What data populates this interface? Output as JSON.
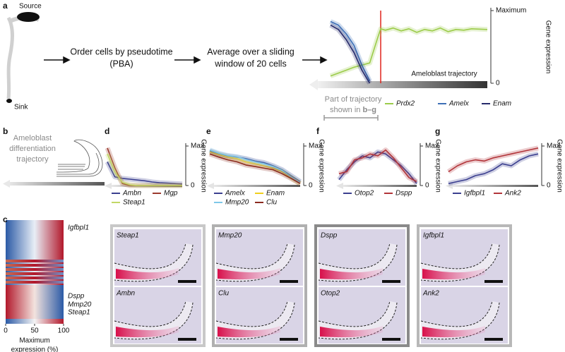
{
  "panel_letters": [
    "a",
    "b",
    "c",
    "d",
    "e",
    "f",
    "g"
  ],
  "panel_a": {
    "source": "Source",
    "sink": "Sink",
    "step1": [
      "Order cells by pseudotime",
      "(PBA)"
    ],
    "step2": [
      "Average over a sliding",
      "window of 20 cells"
    ],
    "range_note": [
      "Part of trajectory",
      "shown in "
    ],
    "range_note_bold": "b–g"
  },
  "panel_b": {
    "label": [
      "Ameloblast",
      "differentiation",
      "trajectory"
    ]
  },
  "panel_c": {
    "row_labels": [
      "Igfbpl1",
      "Dspp",
      "Mmp20",
      "Steap1"
    ]
  },
  "images": [
    {
      "top": "Steap1",
      "bottom": "Ambn"
    },
    {
      "top": "Mmp20",
      "bottom": "Clu"
    },
    {
      "top": "Dspp",
      "bottom": "Otop2"
    },
    {
      "top": "Igfbpl1",
      "bottom": "Ank2"
    }
  ],
  "chart_data": [
    {
      "type": "line",
      "x": [
        0,
        5,
        10,
        15,
        20,
        25,
        30,
        32,
        35,
        40,
        45,
        50,
        55,
        60,
        65,
        70,
        75,
        80,
        85,
        90,
        100
      ],
      "xlim": [
        0,
        100
      ],
      "ylim": [
        0,
        100
      ],
      "yticks": [
        0,
        {
          "value": 100,
          "label": "Maximum"
        }
      ],
      "ylabel": "Gene expression",
      "annotation": "Ameloblast trajectory",
      "vline": {
        "x": 32,
        "color": "#e0231b"
      },
      "series": [
        {
          "name": "Prdx2",
          "color": "#9ccc4a",
          "values": [
            10,
            14,
            18,
            22,
            25,
            28,
            62,
            75,
            73,
            76,
            72,
            75,
            70,
            74,
            72,
            76,
            71,
            74,
            73,
            75,
            74
          ]
        },
        {
          "name": "Amelx",
          "color": "#3d6fb6",
          "values": [
            85,
            80,
            68,
            52,
            25,
            3,
            null,
            null,
            null,
            null,
            null,
            null,
            null,
            null,
            null,
            null,
            null,
            null,
            null,
            null,
            null
          ]
        },
        {
          "name": "Enam",
          "color": "#262a6b",
          "values": [
            80,
            74,
            60,
            42,
            18,
            0,
            null,
            null,
            null,
            null,
            null,
            null,
            null,
            null,
            null,
            null,
            null,
            null,
            null,
            null,
            null
          ]
        }
      ]
    },
    {
      "type": "line",
      "x": [
        0,
        10,
        20,
        30,
        40,
        50,
        60,
        70,
        80,
        90,
        100
      ],
      "xlim": [
        0,
        100
      ],
      "ylim": [
        0,
        100
      ],
      "yticks": [
        0,
        {
          "value": 100,
          "label": "Max"
        }
      ],
      "ylabel": "Gene expression",
      "series": [
        {
          "name": "Ambn",
          "color": "#3b3f8f",
          "values": [
            60,
            22,
            18,
            16,
            14,
            12,
            9,
            7,
            6,
            5,
            4
          ]
        },
        {
          "name": "Mgp",
          "color": "#9b3a2e",
          "values": [
            95,
            45,
            5,
            0,
            0,
            0,
            0,
            0,
            0,
            0,
            0
          ]
        },
        {
          "name": "Steap1",
          "color": "#c2d866",
          "values": [
            80,
            35,
            8,
            2,
            0,
            0,
            0,
            0,
            0,
            0,
            0
          ]
        }
      ]
    },
    {
      "type": "line",
      "x": [
        0,
        10,
        20,
        30,
        40,
        50,
        60,
        70,
        80,
        90,
        100
      ],
      "xlim": [
        0,
        100
      ],
      "ylim": [
        0,
        100
      ],
      "yticks": [
        0,
        {
          "value": 100,
          "label": "Max"
        }
      ],
      "ylabel": "Gene expression",
      "series": [
        {
          "name": "Amelx",
          "color": "#3b3f8f",
          "values": [
            88,
            80,
            75,
            72,
            68,
            62,
            58,
            50,
            40,
            25,
            10
          ]
        },
        {
          "name": "Enam",
          "color": "#f0cf1c",
          "values": [
            85,
            78,
            72,
            68,
            60,
            55,
            50,
            44,
            35,
            20,
            5
          ]
        },
        {
          "name": "Mmp20",
          "color": "#7ec8e8",
          "values": [
            90,
            82,
            76,
            73,
            66,
            60,
            55,
            48,
            38,
            22,
            8
          ]
        },
        {
          "name": "Clu",
          "color": "#8b2b1f",
          "values": [
            80,
            72,
            65,
            60,
            52,
            48,
            44,
            40,
            30,
            18,
            5
          ]
        }
      ]
    },
    {
      "type": "line",
      "x": [
        0,
        10,
        20,
        30,
        40,
        50,
        60,
        70,
        80,
        90,
        100
      ],
      "xlim": [
        0,
        100
      ],
      "ylim": [
        0,
        100
      ],
      "yticks": [
        0,
        {
          "value": 100,
          "label": "Max"
        }
      ],
      "ylabel": "Gene expression",
      "series": [
        {
          "name": "Otop2",
          "color": "#3b3f8f",
          "values": [
            15,
            40,
            60,
            75,
            70,
            85,
            80,
            65,
            50,
            30,
            5
          ]
        },
        {
          "name": "Dspp",
          "color": "#b2353a",
          "values": [
            30,
            35,
            65,
            70,
            80,
            75,
            90,
            70,
            45,
            20,
            10
          ]
        }
      ]
    },
    {
      "type": "line",
      "x": [
        0,
        10,
        20,
        30,
        40,
        50,
        60,
        70,
        80,
        90,
        100
      ],
      "xlim": [
        0,
        100
      ],
      "ylim": [
        0,
        100
      ],
      "yticks": [
        0,
        {
          "value": 100,
          "label": "Max"
        }
      ],
      "ylabel": "Gene expression",
      "series": [
        {
          "name": "Igfbpl1",
          "color": "#3b3f8f",
          "values": [
            5,
            10,
            15,
            25,
            30,
            40,
            55,
            50,
            65,
            75,
            80
          ]
        },
        {
          "name": "Ank2",
          "color": "#b2353a",
          "values": [
            35,
            50,
            60,
            65,
            62,
            70,
            75,
            80,
            85,
            90,
            95
          ]
        }
      ]
    },
    {
      "type": "colorbar",
      "xlim": [
        0,
        100
      ],
      "xticks": [
        0,
        50,
        100
      ],
      "xlabel": [
        "Maximum",
        "expression (%)"
      ],
      "colors": [
        "#2b5aa6",
        "#f4f4f4",
        "#b2182b"
      ]
    }
  ]
}
